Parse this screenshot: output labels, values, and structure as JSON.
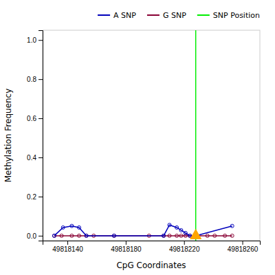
{
  "chart_data": {
    "type": "line",
    "xlabel": "CpG Coordinates",
    "ylabel": "Methylation Frequency",
    "xlim": [
      49818123,
      49818272
    ],
    "ylim": [
      -0.025,
      1.05
    ],
    "xticks": [
      49818140,
      49818180,
      49818220,
      49818260
    ],
    "yticks": [
      {
        "value": 0.0,
        "label": "0.0"
      },
      0.2,
      0.4,
      0.6,
      0.8,
      {
        "value": 1.0,
        "label": "1.0"
      }
    ],
    "legend": "top",
    "series": [
      {
        "name": "A SNP",
        "type": "line",
        "color": "#0000bb",
        "marker": "circle",
        "x": [
          49818131,
          49818137,
          49818143,
          49818148,
          49818153,
          49818172,
          49818206,
          49818210,
          49818215,
          49818218,
          49818221,
          49818224,
          49818228,
          49818253
        ],
        "values": [
          0.0,
          0.042,
          0.05,
          0.042,
          0.0,
          0.0,
          0.0,
          0.055,
          0.042,
          0.028,
          0.014,
          0.0,
          0.0,
          0.05
        ]
      },
      {
        "name": "G SNP",
        "type": "line",
        "color": "#880033",
        "marker": "circle",
        "x": [
          49818131,
          49818136,
          49818143,
          49818148,
          49818153,
          49818158,
          49818172,
          49818196,
          49818206,
          49818210,
          49818215,
          49818218,
          49818221,
          49818224,
          49818228,
          49818236,
          49818241,
          49818248,
          49818253
        ],
        "values": [
          0.0,
          0.0,
          0.0,
          0.0,
          0.0,
          0.0,
          0.0,
          0.0,
          0.0,
          0.0,
          0.0,
          0.0,
          0.0,
          0.0,
          0.0,
          0.0,
          0.0,
          0.0,
          0.0
        ]
      },
      {
        "name": "SNP Position",
        "type": "vline",
        "color": "#00ee00",
        "x": [
          49818228
        ]
      },
      {
        "type": "scatter",
        "color": "#ffa500",
        "marker": "triangle",
        "x": [
          49818228
        ],
        "values": [
          0.0
        ]
      }
    ]
  }
}
